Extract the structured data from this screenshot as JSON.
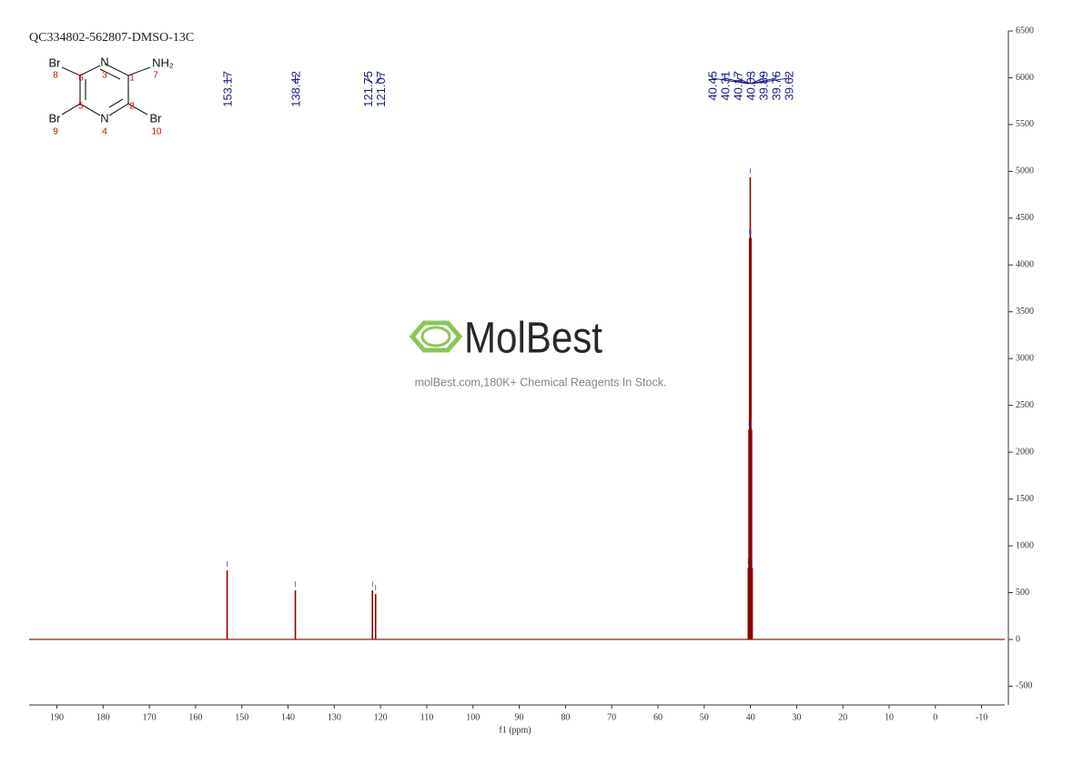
{
  "chart_data": {
    "type": "nmr",
    "title": "QC334802-562807-DMSO-13C",
    "x_label": "f1 (ppm)",
    "x": [
      153.17,
      138.42,
      121.75,
      121.07,
      40.45,
      40.31,
      40.17,
      40.03,
      39.89,
      39.76,
      39.62
    ],
    "values": [
      737,
      524,
      524,
      485,
      766,
      2241,
      4288,
      4938,
      4288,
      2241,
      766
    ],
    "color": "#8b0000",
    "label_color": "#1a1a8c",
    "xlim": [
      196,
      -15
    ],
    "xticks": [
      190,
      180,
      170,
      160,
      150,
      140,
      130,
      120,
      110,
      100,
      90,
      80,
      70,
      60,
      50,
      40,
      30,
      20,
      10,
      0,
      -10
    ],
    "ylim": [
      -700,
      6500
    ],
    "yticks": [
      -500,
      0,
      500,
      1000,
      1500,
      2000,
      2500,
      3000,
      3500,
      4000,
      4500,
      5000,
      5500,
      6000,
      6500
    ],
    "structure": {
      "atoms": [
        "Br",
        "N",
        "NH₂",
        "Br",
        "N",
        "Br"
      ],
      "locants": [
        "8",
        "3",
        "7",
        "9",
        "4",
        "10",
        "6",
        "1",
        "5",
        "2"
      ]
    },
    "watermark": {
      "logo": "MolBest",
      "text": "molBest.com,180K+ Chemical Reagents In Stock."
    }
  }
}
